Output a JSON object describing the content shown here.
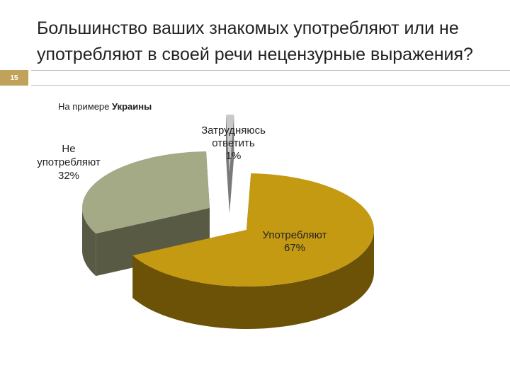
{
  "slide": {
    "title": "Большинство ваших знакомых употребляют или не употребляют в своей речи нецензурные выражения?",
    "number": "15",
    "subtitle_prefix": "На примере",
    "subtitle_bold": "Украины"
  },
  "colors": {
    "accent": "#c0a25a",
    "rule": "#bfbfbf"
  },
  "chart_data": {
    "type": "pie",
    "style": "3d-exploded",
    "slices": [
      {
        "label": "Употребляют",
        "value": 67,
        "value_label": "67%",
        "top_color": "#c59a13",
        "side_color": "#6b5206"
      },
      {
        "label": "Не употребляют",
        "value": 32,
        "value_label": "32%",
        "top_color": "#a5aa86",
        "side_color": "#585a44"
      },
      {
        "label": "Затрудняюсь ответить",
        "value": 1,
        "value_label": "1%",
        "top_color": "#c9c9c9",
        "side_color": "#7a7a7a"
      }
    ]
  }
}
